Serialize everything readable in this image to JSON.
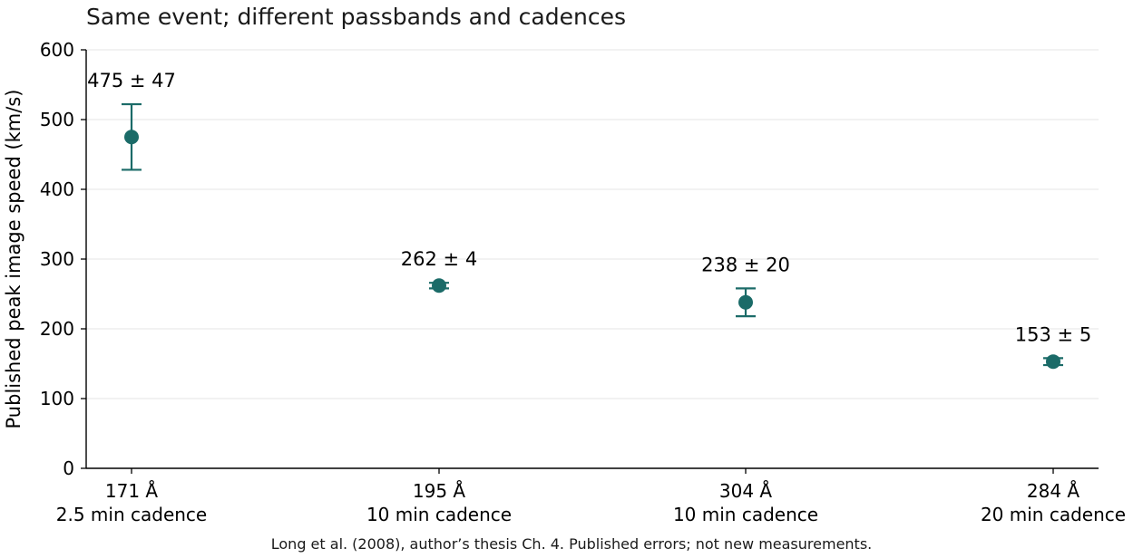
{
  "chart_data": {
    "type": "scatter",
    "title": "Same event; different passbands and cadences",
    "ylabel": "Published peak image speed (km/s)",
    "xlabel": "",
    "ylim": [
      0,
      600
    ],
    "yticks": [
      0,
      100,
      200,
      300,
      400,
      500,
      600
    ],
    "grid": "horizontal",
    "color": "#1b6b68",
    "categories": [
      {
        "line1": "171 Å",
        "line2": "2.5 min cadence"
      },
      {
        "line1": "195 Å",
        "line2": "10 min cadence"
      },
      {
        "line1": "304 Å",
        "line2": "10 min cadence"
      },
      {
        "line1": "284 Å",
        "line2": "20 min cadence"
      }
    ],
    "values": [
      475,
      262,
      238,
      153
    ],
    "errors": [
      47,
      4,
      20,
      5
    ],
    "data_labels": [
      "475 ± 47",
      "262 ± 4",
      "238 ± 20",
      "153 ± 5"
    ],
    "caption": "Long et al. (2008), author’s thesis Ch. 4. Published errors; not new measurements."
  }
}
